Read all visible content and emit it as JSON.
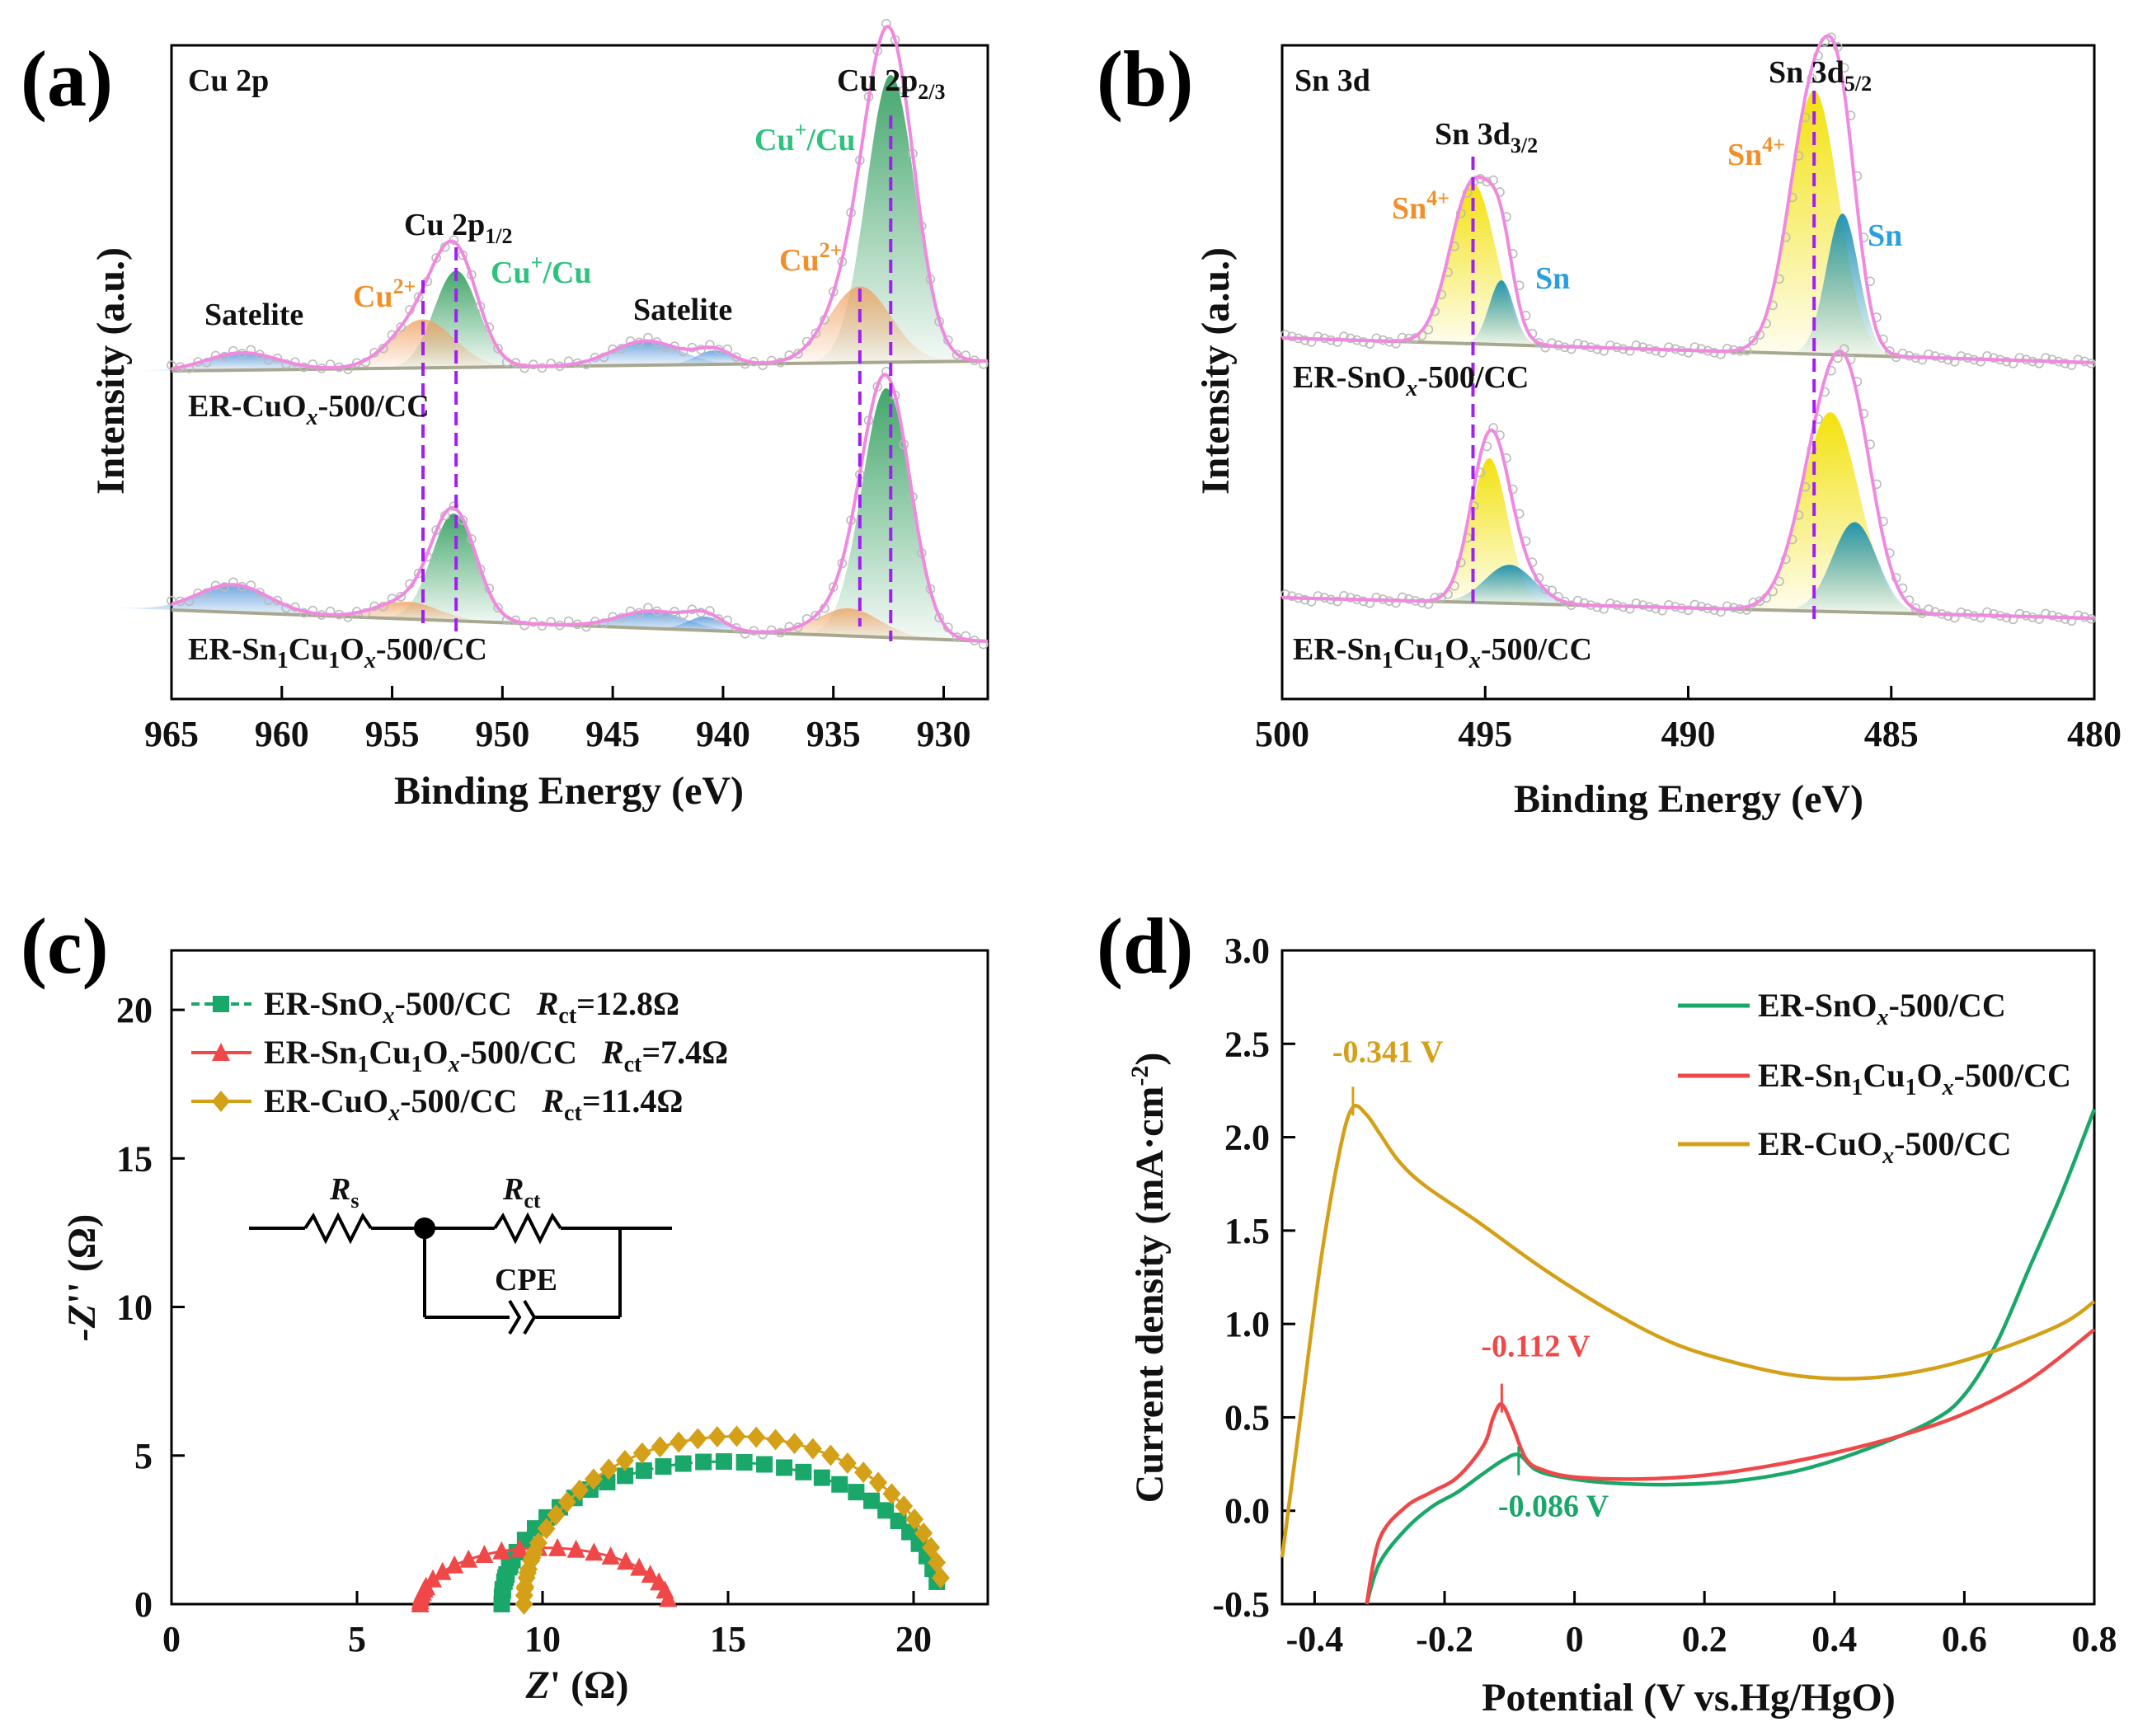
{
  "chart_data": [
    {
      "panel": "(a)",
      "type": "line",
      "title": "Cu 2p",
      "xlabel": "Binding Energy (eV)",
      "ylabel": "Intensity (a.u.)",
      "xlim": [
        965,
        928
      ],
      "xticks": [
        965,
        960,
        955,
        950,
        945,
        940,
        935,
        930
      ],
      "series": [
        {
          "name": "ER-CuOx-500/CC",
          "base": 0.0,
          "peaks": [
            {
              "x": 932.4,
              "h": 0.83
            },
            {
              "x": 933.8,
              "h": 0.22
            },
            {
              "x": 952.1,
              "h": 0.28
            },
            {
              "x": 953.6,
              "h": 0.14
            },
            {
              "x": 961.8,
              "h": 0.05
            },
            {
              "x": 943.5,
              "h": 0.07
            },
            {
              "x": 940.4,
              "h": 0.04
            }
          ]
        },
        {
          "name": "ER-Sn1Cu1Ox-500/CC",
          "base": 0.0,
          "peaks": [
            {
              "x": 932.6,
              "h": 0.72
            },
            {
              "x": 934.3,
              "h": 0.08
            },
            {
              "x": 952.2,
              "h": 0.31
            },
            {
              "x": 954.3,
              "h": 0.05
            },
            {
              "x": 962.2,
              "h": 0.08
            },
            {
              "x": 943.2,
              "h": 0.05
            },
            {
              "x": 940.8,
              "h": 0.04
            }
          ]
        }
      ],
      "annotations": {
        "cu2p32": "Cu 2p",
        "cu2p32_sub": "2/3",
        "cu2p12": "Cu 2p",
        "cu2p12_sub": "1/2",
        "cu_plus": "Cu",
        "cu_plus_sup": "+",
        "cu_plus_tail": "/Cu",
        "cu2plus": "Cu",
        "cu2plus_sup": "2+",
        "satelite": "Satelite",
        "sample1": "ER-CuO",
        "sample1_sub": "x",
        "sample1_tail": "-500/CC",
        "sample2_a": "ER-Sn",
        "sample2_b": "1",
        "sample2_c": "Cu",
        "sample2_d": "1",
        "sample2_e": "O",
        "sample2_f": "x",
        "sample2_g": "-500/CC"
      },
      "dashed_lines": [
        953.6,
        952.1,
        933.8,
        932.4
      ]
    },
    {
      "panel": "(b)",
      "type": "line",
      "title": "Sn 3d",
      "xlabel": "Binding Energy (eV)",
      "ylabel": "Intensity (a.u.)",
      "xlim": [
        500,
        480
      ],
      "xticks": [
        500,
        495,
        490,
        485,
        480
      ],
      "series": [
        {
          "name": "ER-SnOx-500/CC",
          "peaks": [
            {
              "x": 495.3,
              "h": 0.5,
              "label": "Sn4+"
            },
            {
              "x": 494.6,
              "h": 0.2,
              "label": "Sn"
            },
            {
              "x": 486.9,
              "h": 0.82,
              "label": "Sn4+"
            },
            {
              "x": 486.2,
              "h": 0.44,
              "label": "Sn"
            }
          ]
        },
        {
          "name": "ER-Sn1Cu1Ox-500/CC",
          "peaks": [
            {
              "x": 494.9,
              "h": 0.45,
              "label": "Sn4+"
            },
            {
              "x": 494.4,
              "h": 0.12,
              "label": "Sn"
            },
            {
              "x": 486.5,
              "h": 0.62,
              "label": "Sn4+"
            },
            {
              "x": 485.9,
              "h": 0.28,
              "label": "Sn"
            }
          ]
        }
      ],
      "annotations": {
        "sn3d52": "Sn 3d",
        "sn3d52_sub": "5/2",
        "sn3d32": "Sn 3d",
        "sn3d32_sub": "3/2",
        "sn4plus": "Sn",
        "sn4plus_sup": "4+",
        "sn": "Sn",
        "sample1": "ER-SnO",
        "sample1_sub": "x",
        "sample1_tail": "-500/CC",
        "sample2_a": "ER-Sn",
        "sample2_b": "1",
        "sample2_c": "Cu",
        "sample2_d": "1",
        "sample2_e": "O",
        "sample2_f": "x",
        "sample2_g": "-500/CC"
      },
      "dashed_lines": [
        495.3,
        486.9
      ]
    },
    {
      "panel": "(c)",
      "type": "scatter",
      "xlabel": "Z' (Ω)",
      "ylabel": "-Z'' (Ω)",
      "xlabel_parts": [
        "Z",
        "' (Ω)"
      ],
      "ylabel_parts": [
        "-Z",
        "'' (Ω)"
      ],
      "xlim": [
        0,
        22
      ],
      "ylim": [
        0,
        22
      ],
      "xticks": [
        0,
        5,
        10,
        15,
        20
      ],
      "yticks": [
        0,
        5,
        10,
        15,
        20
      ],
      "series": [
        {
          "name": "ER-SnOx-500/CC",
          "Rct": "12.8Ω",
          "color": "#1aa76a",
          "marker": "square",
          "arc_start": 8.9,
          "arc_end": 20.7,
          "arc_height": 4.8
        },
        {
          "name": "ER-Sn1Cu1Ox-500/CC",
          "Rct": "7.4Ω",
          "color": "#f04848",
          "marker": "triangle",
          "arc_start": 6.7,
          "arc_end": 13.4,
          "arc_height": 1.9
        },
        {
          "name": "ER-CuOx-500/CC",
          "Rct": "11.4Ω",
          "color": "#d4a017",
          "marker": "diamond",
          "arc_start": 9.5,
          "arc_end": 20.8,
          "arc_height": 5.65
        }
      ],
      "legend": [
        {
          "a": "ER-SnO",
          "b": "x",
          "c": "-500/CC",
          "r": "R",
          "rsub": "ct",
          "val": "=12.8Ω"
        },
        {
          "a": "ER-Sn",
          "b": "1",
          "c": "Cu",
          "d": "1",
          "e": "O",
          "f": "x",
          "g": "-500/CC",
          "r": "R",
          "rsub": "ct",
          "val": "=7.4Ω"
        },
        {
          "a": "ER-CuO",
          "b": "x",
          "c": "-500/CC",
          "r": "R",
          "rsub": "ct",
          "val": "=11.4Ω"
        }
      ],
      "circuit": {
        "rs": "R",
        "rs_sub": "s",
        "rct": "R",
        "rct_sub": "ct",
        "cpe": "CPE"
      }
    },
    {
      "panel": "(d)",
      "type": "line",
      "xlabel": "Potential (V vs.Hg/HgO)",
      "ylabel": "Current density (mA·cm",
      "ylabel_sup": "-2",
      "ylabel_tail": ")",
      "xlim": [
        -0.45,
        0.8
      ],
      "ylim": [
        -0.5,
        3.0
      ],
      "xticks": [
        -0.4,
        -0.2,
        0.0,
        0.2,
        0.4,
        0.6,
        0.8
      ],
      "yticks": [
        -0.5,
        0.0,
        0.5,
        1.0,
        1.5,
        2.0,
        2.5,
        3.0
      ],
      "series": [
        {
          "name": "ER-SnOx-500/CC",
          "color": "#1aa76a",
          "x": [
            -0.32,
            -0.3,
            -0.26,
            -0.22,
            -0.18,
            -0.14,
            -0.11,
            -0.086,
            -0.06,
            -0.02,
            0.05,
            0.15,
            0.25,
            0.35,
            0.45,
            0.55,
            0.6,
            0.65,
            0.7,
            0.75,
            0.8
          ],
          "y": [
            -0.5,
            -0.28,
            -0.1,
            0.02,
            0.1,
            0.2,
            0.27,
            0.3,
            0.22,
            0.18,
            0.15,
            0.14,
            0.16,
            0.22,
            0.33,
            0.48,
            0.62,
            0.9,
            1.3,
            1.7,
            2.15
          ]
        },
        {
          "name": "ER-Sn1Cu1Ox-500/CC",
          "color": "#f04848",
          "x": [
            -0.32,
            -0.3,
            -0.26,
            -0.22,
            -0.18,
            -0.14,
            -0.125,
            -0.112,
            -0.095,
            -0.075,
            -0.05,
            0.0,
            0.1,
            0.2,
            0.3,
            0.4,
            0.5,
            0.6,
            0.7,
            0.8
          ],
          "y": [
            -0.5,
            -0.15,
            0.02,
            0.1,
            0.18,
            0.35,
            0.5,
            0.57,
            0.45,
            0.28,
            0.22,
            0.18,
            0.17,
            0.19,
            0.24,
            0.31,
            0.4,
            0.52,
            0.7,
            0.97
          ]
        },
        {
          "name": "ER-CuOx-500/CC",
          "color": "#d4a017",
          "x": [
            -0.45,
            -0.42,
            -0.39,
            -0.36,
            -0.341,
            -0.32,
            -0.3,
            -0.27,
            -0.23,
            -0.15,
            -0.05,
            0.05,
            0.15,
            0.25,
            0.35,
            0.45,
            0.55,
            0.65,
            0.75,
            0.8
          ],
          "y": [
            -0.25,
            0.55,
            1.35,
            1.95,
            2.16,
            2.12,
            2.02,
            1.87,
            1.74,
            1.55,
            1.3,
            1.08,
            0.9,
            0.79,
            0.72,
            0.71,
            0.76,
            0.86,
            1.0,
            1.12
          ]
        }
      ],
      "legend": [
        {
          "a": "ER-SnO",
          "b": "x",
          "c": "-500/CC"
        },
        {
          "a": "ER-Sn",
          "b": "1",
          "c": "Cu",
          "d": "1",
          "e": "O",
          "f": "x",
          "g": "-500/CC"
        },
        {
          "a": "ER-CuO",
          "b": "x",
          "c": "-500/CC"
        }
      ],
      "peak_labels": [
        {
          "text": "-0.341 V",
          "color": "#d4a017",
          "x": -0.341,
          "y": 2.16
        },
        {
          "text": "-0.112 V",
          "color": "#f04848",
          "x": -0.112,
          "y": 0.57
        },
        {
          "text": "-0.086 V",
          "color": "#1aa76a",
          "x": -0.086,
          "y": 0.3
        }
      ]
    }
  ],
  "panel_labels": [
    "(a)",
    "(b)",
    "(c)",
    "(d)"
  ]
}
